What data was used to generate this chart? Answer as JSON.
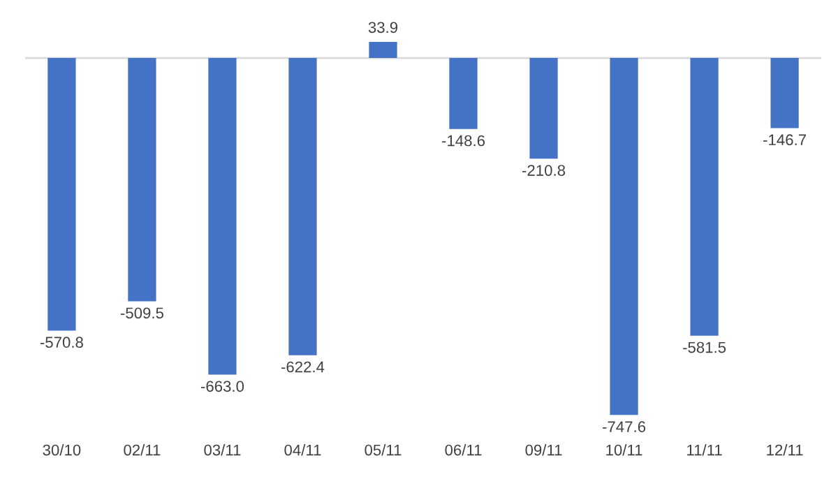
{
  "chart_data": {
    "type": "bar",
    "categories": [
      "30/10",
      "02/11",
      "03/11",
      "04/11",
      "05/11",
      "06/11",
      "09/11",
      "10/11",
      "11/11",
      "12/11"
    ],
    "values": [
      -570.8,
      -509.5,
      -663.0,
      -622.4,
      33.9,
      -148.6,
      -210.8,
      -747.6,
      -581.5,
      -146.7
    ],
    "value_labels": [
      "-570.8",
      "-509.5",
      "-663.0",
      "-622.4",
      "33.9",
      "-148.6",
      "-210.8",
      "-747.6",
      "-581.5",
      "-146.7"
    ],
    "color": "#4472c4",
    "grid": false,
    "legend": false
  }
}
